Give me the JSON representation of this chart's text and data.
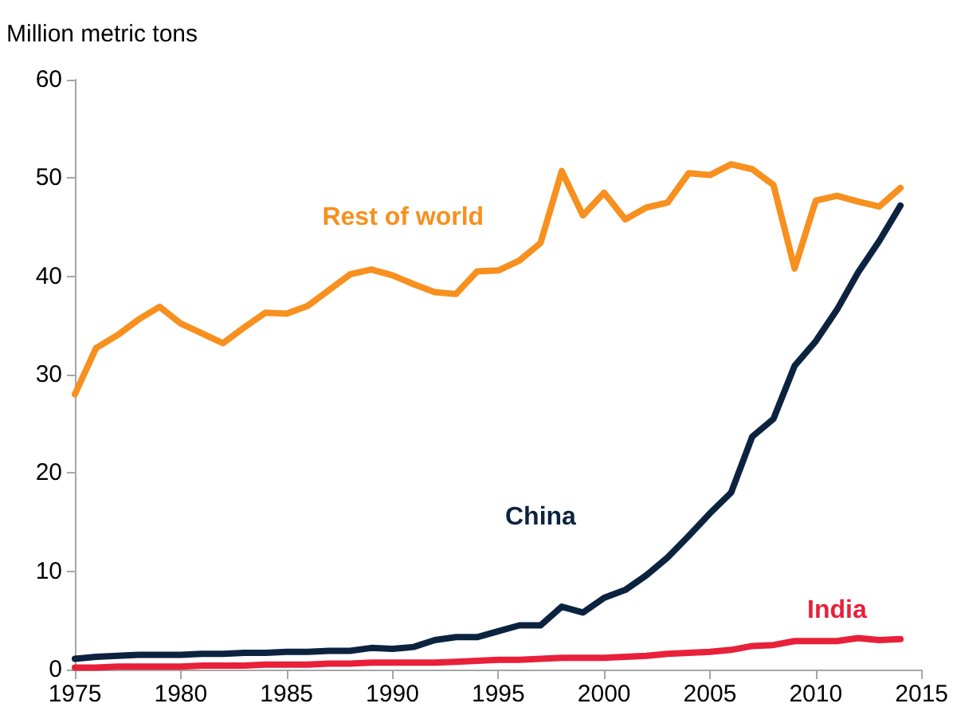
{
  "chart_data": {
    "type": "line",
    "ylabel": "Million metric tons",
    "x": [
      1975,
      1976,
      1977,
      1978,
      1979,
      1980,
      1981,
      1982,
      1983,
      1984,
      1985,
      1986,
      1987,
      1988,
      1989,
      1990,
      1991,
      1992,
      1993,
      1994,
      1995,
      1996,
      1997,
      1998,
      1999,
      2000,
      2001,
      2002,
      2003,
      2004,
      2005,
      2006,
      2007,
      2008,
      2009,
      2010,
      2011,
      2012,
      2013,
      2014
    ],
    "series": [
      {
        "name": "Rest of world",
        "color": "#f7901e",
        "values": [
          28,
          32.7,
          34,
          35.6,
          36.9,
          35.2,
          34.2,
          33.2,
          34.8,
          36.3,
          36.2,
          37,
          38.6,
          40.2,
          40.7,
          40.1,
          39.2,
          38.4,
          38.2,
          40.5,
          40.6,
          41.6,
          43.4,
          50.7,
          46.2,
          48.5,
          45.8,
          47,
          47.5,
          50.5,
          50.3,
          51.4,
          50.9,
          49.3,
          40.8,
          47.7,
          48.2,
          47.6,
          47.1,
          49
        ]
      },
      {
        "name": "China",
        "color": "#0c2340",
        "values": [
          1.1,
          1.3,
          1.4,
          1.5,
          1.5,
          1.5,
          1.6,
          1.6,
          1.7,
          1.7,
          1.8,
          1.8,
          1.9,
          1.9,
          2.2,
          2.1,
          2.3,
          3,
          3.3,
          3.3,
          3.9,
          4.5,
          4.5,
          6.4,
          5.8,
          7.3,
          8.1,
          9.6,
          11.4,
          13.6,
          15.9,
          18,
          23.7,
          25.5,
          30.9,
          33.4,
          36.6,
          40.4,
          43.6,
          47.2
        ]
      },
      {
        "name": "India",
        "color": "#e8203a",
        "values": [
          0.2,
          0.2,
          0.3,
          0.3,
          0.3,
          0.3,
          0.4,
          0.4,
          0.4,
          0.5,
          0.5,
          0.5,
          0.6,
          0.6,
          0.7,
          0.7,
          0.7,
          0.7,
          0.8,
          0.9,
          1,
          1,
          1.1,
          1.2,
          1.2,
          1.2,
          1.3,
          1.4,
          1.6,
          1.7,
          1.8,
          2,
          2.4,
          2.5,
          2.9,
          2.9,
          2.9,
          3.2,
          3,
          3.1
        ]
      }
    ],
    "xlim": [
      1975,
      2015
    ],
    "xticks": [
      1975,
      1980,
      1985,
      1990,
      1995,
      2000,
      2005,
      2010,
      2015
    ],
    "ylim": [
      0,
      60
    ],
    "yticks": [
      0,
      10,
      20,
      30,
      40,
      50,
      60
    ],
    "grid": false,
    "legend": false,
    "marker": "none",
    "line_style": "solid"
  }
}
